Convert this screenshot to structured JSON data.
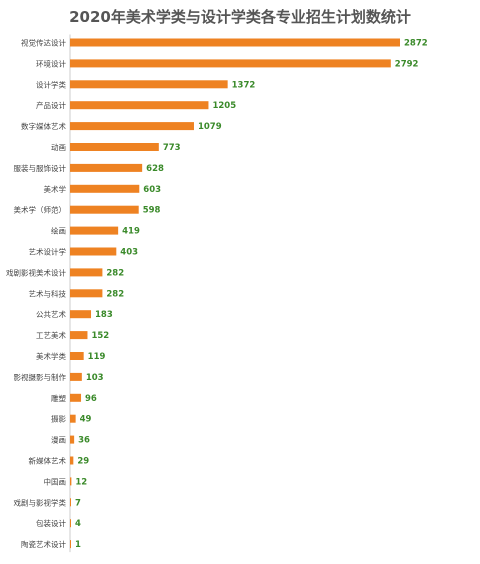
{
  "chart_data": {
    "type": "bar",
    "orientation": "horizontal",
    "title": "2020年美术学类与设计学类各专业招生计划数统计",
    "categories": [
      "视觉传达设计",
      "环境设计",
      "设计学类",
      "产品设计",
      "数字媒体艺术",
      "动画",
      "服装与服饰设计",
      "美术学",
      "美术学（师范）",
      "绘画",
      "艺术设计学",
      "戏剧影视美术设计",
      "艺术与科技",
      "公共艺术",
      "工艺美术",
      "美术学类",
      "影视摄影与制作",
      "雕塑",
      "摄影",
      "漫画",
      "新媒体艺术",
      "中国画",
      "戏剧与影视学类",
      "包装设计",
      "陶瓷艺术设计"
    ],
    "values": [
      2872,
      2792,
      1372,
      1205,
      1079,
      773,
      628,
      603,
      598,
      419,
      403,
      282,
      282,
      183,
      152,
      119,
      103,
      96,
      49,
      36,
      29,
      12,
      7,
      4,
      1
    ],
    "xlabel": "",
    "ylabel": "",
    "grid": false,
    "legend": "none",
    "colors": {
      "bar": "#ee8222",
      "value_label": "#3a8a2a",
      "axis": "#cccccc"
    }
  }
}
